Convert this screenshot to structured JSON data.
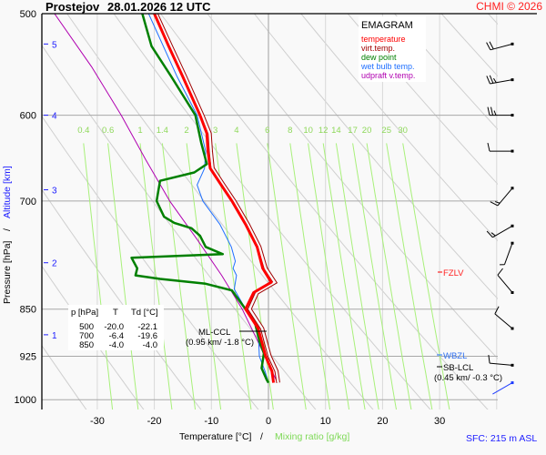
{
  "header": {
    "station": "Prostejov",
    "datetime": "28.01.2026 12 UTC",
    "copyright": "CHMI © 2026"
  },
  "legend": {
    "title": "EMAGRAM",
    "items": [
      {
        "label": "temperature",
        "color": "#ff0000"
      },
      {
        "label": "virt.temp.",
        "color": "#a00000"
      },
      {
        "label": "dew point",
        "color": "#008000"
      },
      {
        "label": "wet bulb temp.",
        "color": "#1e6fff"
      },
      {
        "label": "udpraft v.temp.",
        "color": "#b000b0"
      }
    ]
  },
  "axes": {
    "ylabel_pressure": "Pressure [hPa]",
    "ylabel_sep": "/",
    "ylabel_altitude": "Altitude [km]",
    "xlabel_temperature": "Temperature [°C]",
    "xlabel_sep": "/",
    "xlabel_mixing": "Mixing ratio [g/kg]",
    "pressure_ticks": [
      "500",
      "600",
      "700",
      "850",
      "925",
      "1000"
    ],
    "temperature_ticks": [
      "-30",
      "-20",
      "-10",
      "0",
      "10",
      "20",
      "30"
    ],
    "altitude_ticks": [
      {
        "km": "5",
        "p": 528
      },
      {
        "km": "4",
        "p": 600
      },
      {
        "km": "3",
        "p": 686
      },
      {
        "km": "2",
        "p": 782
      },
      {
        "km": "1",
        "p": 890
      }
    ],
    "mixing_ratio_labels": [
      "0.4",
      "0.6",
      "1",
      "1.4",
      "2",
      "3",
      "4",
      "6",
      "8",
      "10",
      "12",
      "14",
      "17",
      "20",
      "25",
      "30"
    ]
  },
  "table": {
    "headers": [
      "p [hPa]",
      "T",
      "Td [°C]"
    ],
    "rows": [
      [
        "500",
        "-20.0",
        "-22.1"
      ],
      [
        "700",
        "-6.4",
        "-19.6"
      ],
      [
        "850",
        "-4.0",
        "-4.0"
      ]
    ]
  },
  "annotations": {
    "ml_ccl": "ML-CCL",
    "ml_ccl_detail": "(0.95 km/ -1.8 °C)",
    "fzlv": "FZLV",
    "wbzl": "WBZL",
    "sb_lcl": "SB-LCL",
    "sb_lcl_detail": "(0.45 km/ -0.3 °C)",
    "sfc": "SFC: 215 m ASL"
  },
  "chart_data": {
    "type": "line",
    "title": "EMAGRAM",
    "xlabel": "Temperature [°C]",
    "ylabel": "Pressure [hPa]",
    "xlim": [
      -38,
      40
    ],
    "ylim": [
      500,
      1020
    ],
    "y_scale": "log",
    "grid": true,
    "legend_placement": "top-right",
    "series": [
      {
        "name": "temperature",
        "color": "#ff0000",
        "points": [
          [
            500,
            -20.0
          ],
          [
            530,
            -17.5
          ],
          [
            560,
            -15
          ],
          [
            600,
            -12
          ],
          [
            620,
            -10.8
          ],
          [
            640,
            -10.6
          ],
          [
            660,
            -10.2
          ],
          [
            680,
            -8.3
          ],
          [
            700,
            -6.4
          ],
          [
            730,
            -4
          ],
          [
            760,
            -2
          ],
          [
            790,
            -1
          ],
          [
            810,
            0.5
          ],
          [
            825,
            -2.6
          ],
          [
            850,
            -4.0
          ],
          [
            880,
            -1.8
          ],
          [
            925,
            -0.5
          ],
          [
            950,
            0.6
          ],
          [
            970,
            0.9
          ]
        ]
      },
      {
        "name": "virt.temp.",
        "color": "#a00000",
        "points": [
          [
            500,
            -19.7
          ],
          [
            530,
            -17.1
          ],
          [
            560,
            -14.6
          ],
          [
            600,
            -11.6
          ],
          [
            620,
            -10.3
          ],
          [
            640,
            -10.1
          ],
          [
            660,
            -9.8
          ],
          [
            680,
            -7.9
          ],
          [
            700,
            -6.0
          ],
          [
            730,
            -3.6
          ],
          [
            760,
            -1.6
          ],
          [
            790,
            -0.5
          ],
          [
            810,
            1.1
          ],
          [
            825,
            -2.0
          ],
          [
            850,
            -3.3
          ],
          [
            880,
            -1.1
          ],
          [
            925,
            0.2
          ],
          [
            950,
            1.4
          ],
          [
            970,
            1.7
          ]
        ]
      },
      {
        "name": "dew point",
        "color": "#008000",
        "points": [
          [
            500,
            -22.1
          ],
          [
            530,
            -20.5
          ],
          [
            560,
            -17
          ],
          [
            600,
            -12.8
          ],
          [
            630,
            -11.8
          ],
          [
            655,
            -10.8
          ],
          [
            665,
            -13
          ],
          [
            675,
            -19
          ],
          [
            700,
            -19.6
          ],
          [
            720,
            -18.3
          ],
          [
            728,
            -16.5
          ],
          [
            735,
            -13.5
          ],
          [
            745,
            -12
          ],
          [
            760,
            -11
          ],
          [
            770,
            -8
          ],
          [
            775,
            -24
          ],
          [
            790,
            -23
          ],
          [
            800,
            -23.3
          ],
          [
            805,
            -19
          ],
          [
            812,
            -11
          ],
          [
            822,
            -6.4
          ],
          [
            850,
            -4.0
          ],
          [
            870,
            -2.4
          ],
          [
            900,
            -1.6
          ],
          [
            920,
            -0.8
          ],
          [
            945,
            -1.2
          ],
          [
            965,
            -0.3
          ],
          [
            970,
            0
          ]
        ]
      },
      {
        "name": "wet bulb temp.",
        "color": "#1e6fff",
        "points": [
          [
            500,
            -21
          ],
          [
            560,
            -16
          ],
          [
            600,
            -12.5
          ],
          [
            640,
            -11
          ],
          [
            660,
            -11.2
          ],
          [
            680,
            -12.5
          ],
          [
            700,
            -11.5
          ],
          [
            730,
            -8.5
          ],
          [
            760,
            -6.5
          ],
          [
            780,
            -5.8
          ],
          [
            790,
            -6.2
          ],
          [
            800,
            -5.6
          ],
          [
            820,
            -6
          ],
          [
            850,
            -4.0
          ],
          [
            880,
            -1.8
          ],
          [
            925,
            -1.6
          ],
          [
            950,
            -0.6
          ],
          [
            970,
            0
          ]
        ]
      },
      {
        "name": "udpraft v.temp.",
        "color": "#b000b0",
        "points": [
          [
            500,
            -37.5
          ],
          [
            550,
            -31
          ],
          [
            600,
            -25.8
          ],
          [
            650,
            -21.5
          ],
          [
            700,
            -17.3
          ],
          [
            750,
            -12.5
          ],
          [
            800,
            -8.2
          ],
          [
            850,
            -4.6
          ],
          [
            900,
            -1.9
          ],
          [
            950,
            0.6
          ],
          [
            970,
            1.6
          ]
        ]
      }
    ],
    "wind_barbs": [
      {
        "p": 528,
        "dir_deg": 255,
        "speed_kt": 20
      },
      {
        "p": 563,
        "dir_deg": 260,
        "speed_kt": 25
      },
      {
        "p": 600,
        "dir_deg": 270,
        "speed_kt": 25
      },
      {
        "p": 640,
        "dir_deg": 270,
        "speed_kt": 10
      },
      {
        "p": 684,
        "dir_deg": 220,
        "speed_kt": 15
      },
      {
        "p": 732,
        "dir_deg": 240,
        "speed_kt": 15
      },
      {
        "p": 755,
        "dir_deg": 200,
        "speed_kt": 5
      },
      {
        "p": 825,
        "dir_deg": 320,
        "speed_kt": 10
      },
      {
        "p": 880,
        "dir_deg": 310,
        "speed_kt": 10
      },
      {
        "p": 940,
        "dir_deg": 275,
        "speed_kt": 10
      },
      {
        "p": 970,
        "dir_deg": 240,
        "speed_kt": 0,
        "color": "#1e3cff"
      }
    ]
  }
}
